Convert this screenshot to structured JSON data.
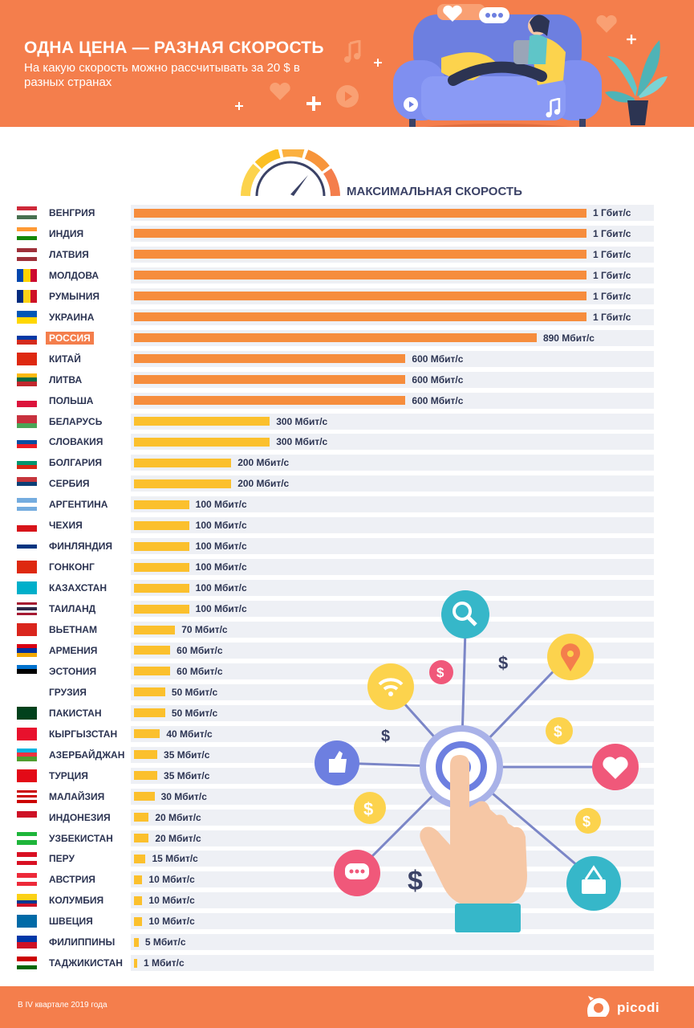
{
  "header": {
    "title": "ОДНА ЦЕНА — РАЗНАЯ СКОРОСТЬ",
    "subtitle": "На какую скорость можно рассчитывать за 20 $ в разных странах"
  },
  "footer": {
    "note": "В IV квартале 2019 года",
    "brand": "picodi"
  },
  "colors": {
    "header_bg": "#f47e4c",
    "bar_orange": "#f68d3d",
    "bar_yellow": "#fbc02d",
    "track": "#eef0f5",
    "text_dark": "#2c3452",
    "highlight": "#f47e4c"
  },
  "icons": [
    "speedometer-icon",
    "search-icon",
    "location-pin-icon",
    "heart-icon",
    "basket-icon",
    "chat-icon",
    "like-icon",
    "wifi-icon",
    "dollar-icon",
    "hand-pointer-icon",
    "sofa-illustration",
    "plant-illustration"
  ],
  "chart_data": {
    "type": "bar",
    "orientation": "horizontal",
    "title": "МАКСИМАЛЬНАЯ СКОРОСТЬ",
    "unit": "Мбит/с",
    "highlight": "РОССИЯ",
    "categories": [
      "ВЕНГРИЯ",
      "ИНДИЯ",
      "ЛАТВИЯ",
      "МОЛДОВА",
      "РУМЫНИЯ",
      "УКРАИНА",
      "РОССИЯ",
      "КИТАЙ",
      "ЛИТВА",
      "ПОЛЬША",
      "БЕЛАРУСЬ",
      "СЛОВАКИЯ",
      "БОЛГАРИЯ",
      "СЕРБИЯ",
      "АРГЕНТИНА",
      "ЧЕХИЯ",
      "ФИНЛЯНДИЯ",
      "ГОНКОНГ",
      "КАЗАХСТАН",
      "ТАИЛАНД",
      "ВЬЕТНАМ",
      "АРМЕНИЯ",
      "ЭСТОНИЯ",
      "ГРУЗИЯ",
      "ПАКИСТАН",
      "КЫРГЫЗСТАН",
      "АЗЕРБАЙДЖАН",
      "ТУРЦИЯ",
      "МАЛАЙЗИЯ",
      "ИНДОНЕЗИЯ",
      "УЗБЕКИСТАН",
      "ПЕРУ",
      "АВСТРИЯ",
      "КОЛУМБИЯ",
      "ШВЕЦИЯ",
      "ФИЛИППИНЫ",
      "ТАДЖИКИСТАН"
    ],
    "values": [
      1000,
      1000,
      1000,
      1000,
      1000,
      1000,
      890,
      600,
      600,
      600,
      300,
      300,
      200,
      200,
      100,
      100,
      100,
      100,
      100,
      100,
      70,
      60,
      60,
      50,
      50,
      40,
      35,
      35,
      30,
      20,
      20,
      15,
      10,
      10,
      10,
      5,
      1
    ],
    "labels": [
      "1 Гбит/с",
      "1 Гбит/с",
      "1 Гбит/с",
      "1 Гбит/с",
      "1 Гбит/с",
      "1 Гбит/с",
      "890 Мбит/с",
      "600 Мбит/с",
      "600 Мбит/с",
      "600 Мбит/с",
      "300 Мбит/с",
      "300 Мбит/с",
      "200 Мбит/с",
      "200 Мбит/с",
      "100 Мбит/с",
      "100 Мбит/с",
      "100 Мбит/с",
      "100 Мбит/с",
      "100 Мбит/с",
      "100 Мбит/с",
      "70 Мбит/с",
      "60 Мбит/с",
      "60 Мбит/с",
      "50 Мбит/с",
      "50 Мбит/с",
      "40 Мбит/с",
      "35 Мбит/с",
      "35 Мбит/с",
      "30 Мбит/с",
      "20 Мбит/с",
      "20 Мбит/с",
      "15 Мбит/с",
      "10 Мбит/с",
      "10 Мбит/с",
      "10 Мбит/с",
      "5 Мбит/с",
      "1 Мбит/с"
    ],
    "flags": [
      [
        "#ce2939",
        "#ffffff",
        "#477050"
      ],
      [
        "#ff9933",
        "#ffffff",
        "#138808"
      ],
      [
        "#9e3039",
        "#ffffff",
        "#9e3039"
      ],
      [
        "#0046ae",
        "#ffd200",
        "#cc092f"
      ],
      [
        "#002b7f",
        "#fcd116",
        "#ce1126"
      ],
      [
        "#0057b7",
        "#ffd700"
      ],
      [
        "#ffffff",
        "#0039a6",
        "#d52b1e"
      ],
      [
        "#de2910"
      ],
      [
        "#fdb913",
        "#006a44",
        "#c1272d"
      ],
      [
        "#ffffff",
        "#dc143c"
      ],
      [
        "#c8313e",
        "#c8313e",
        "#4aa657"
      ],
      [
        "#ffffff",
        "#0b4ea2",
        "#ee1c25"
      ],
      [
        "#ffffff",
        "#00966e",
        "#d62612"
      ],
      [
        "#c6363c",
        "#0c4076",
        "#ffffff"
      ],
      [
        "#74acdf",
        "#ffffff",
        "#74acdf"
      ],
      [
        "#ffffff",
        "#d7141a"
      ],
      [
        "#ffffff",
        "#003580",
        "#ffffff"
      ],
      [
        "#de2910"
      ],
      [
        "#00afca"
      ],
      [
        "#a51931",
        "#f4f5f8",
        "#2d2a4a",
        "#f4f5f8",
        "#a51931"
      ],
      [
        "#da251d"
      ],
      [
        "#d90012",
        "#0033a0",
        "#f2a800"
      ],
      [
        "#0072ce",
        "#000000",
        "#ffffff"
      ],
      [
        "#ffffff"
      ],
      [
        "#01411c"
      ],
      [
        "#e8112d"
      ],
      [
        "#00b5e2",
        "#ef3340",
        "#509e2f"
      ],
      [
        "#e30a17"
      ],
      [
        "#cc0001",
        "#ffffff",
        "#cc0001",
        "#ffffff",
        "#cc0001"
      ],
      [
        "#ce1126",
        "#ffffff"
      ],
      [
        "#1eb53a",
        "#ffffff",
        "#1eb53a"
      ],
      [
        "#d91023",
        "#ffffff",
        "#d91023"
      ],
      [
        "#ed2939",
        "#ffffff",
        "#ed2939"
      ],
      [
        "#fcd116",
        "#fcd116",
        "#003893",
        "#ce1126"
      ],
      [
        "#006aa7"
      ],
      [
        "#0038a8",
        "#ce1126"
      ],
      [
        "#cc0000",
        "#ffffff",
        "#006600"
      ]
    ]
  }
}
